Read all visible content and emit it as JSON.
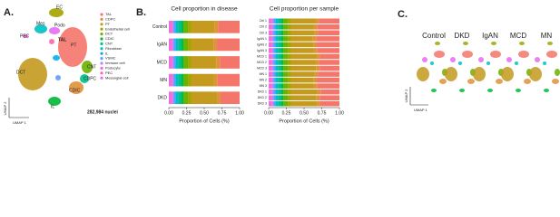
{
  "panel_a": {
    "label": "A.",
    "clusters": [
      "EC",
      "Mes",
      "Podo",
      "PEC",
      "TAL",
      "PT",
      "DCT",
      "CNT",
      "CDPC",
      "CDIC",
      "IL"
    ],
    "nuclei_count": "282,984 nuclei",
    "x_axis": "UMAP 1",
    "y_axis": "UMAP 2"
  },
  "panel_b": {
    "label": "B."
  },
  "chart_data": [
    {
      "type": "bar",
      "orientation": "horizontal",
      "stacked": true,
      "title": "Cell proportion in disease",
      "x_label": "Proportion of Cells (%)",
      "categories": [
        "Control",
        "IgAN",
        "MCD",
        "MN",
        "DKD"
      ],
      "xlim": [
        0,
        1
      ],
      "xticks": [
        {
          "value": 0,
          "label": "0.00"
        },
        {
          "value": 0.25,
          "label": "0.25"
        },
        {
          "value": 0.5,
          "label": "0.50"
        },
        {
          "value": 0.75,
          "label": "0.75"
        },
        {
          "value": 1,
          "label": "1.00"
        }
      ],
      "series": [
        {
          "name": "TAL",
          "color": "#f4766b",
          "values": [
            0.3,
            0.32,
            0.28,
            0.31,
            0.27
          ]
        },
        {
          "name": "CDPC",
          "color": "#e0923a",
          "values": [
            0.05,
            0.05,
            0.05,
            0.05,
            0.05
          ]
        },
        {
          "name": "PT",
          "color": "#c49a1f",
          "values": [
            0.33,
            0.31,
            0.35,
            0.32,
            0.36
          ]
        },
        {
          "name": "Endothelial cell",
          "color": "#a3a500",
          "values": [
            0.05,
            0.05,
            0.05,
            0.05,
            0.05
          ]
        },
        {
          "name": "DCT",
          "color": "#6bb100",
          "values": [
            0.06,
            0.06,
            0.06,
            0.06,
            0.06
          ]
        },
        {
          "name": "CDIC",
          "color": "#00ba38",
          "values": [
            0.03,
            0.03,
            0.03,
            0.03,
            0.03
          ]
        },
        {
          "name": "CNT",
          "color": "#00c08b",
          "values": [
            0.05,
            0.05,
            0.05,
            0.05,
            0.05
          ]
        },
        {
          "name": "Fibroblast",
          "color": "#00bfc4",
          "values": [
            0.03,
            0.03,
            0.03,
            0.03,
            0.03
          ]
        },
        {
          "name": "IL",
          "color": "#00b0f6",
          "values": [
            0.01,
            0.01,
            0.01,
            0.01,
            0.01
          ]
        },
        {
          "name": "VSMC",
          "color": "#619cff",
          "values": [
            0.02,
            0.02,
            0.02,
            0.02,
            0.02
          ]
        },
        {
          "name": "Immune cell",
          "color": "#b983ff",
          "values": [
            0.02,
            0.02,
            0.02,
            0.02,
            0.02
          ]
        },
        {
          "name": "Podocyte",
          "color": "#f564e3",
          "values": [
            0.01,
            0.01,
            0.01,
            0.01,
            0.01
          ]
        },
        {
          "name": "PEC",
          "color": "#ff64b0",
          "values": [
            0.02,
            0.02,
            0.02,
            0.02,
            0.02
          ]
        },
        {
          "name": "Mesangial cell",
          "color": "#e76bf3",
          "values": [
            0.02,
            0.02,
            0.02,
            0.02,
            0.02
          ]
        }
      ]
    },
    {
      "type": "bar",
      "orientation": "horizontal",
      "stacked": true,
      "title": "Cell proportion per sample",
      "x_label": "Proportion of Cells (%)",
      "categories": [
        "Ctrl 1",
        "Ctrl 2",
        "Ctrl 3",
        "IgAN 1",
        "IgAN 2",
        "IgAN 3",
        "MCD 1",
        "MCD 2",
        "MCD 3",
        "MN 1",
        "MN 2",
        "MN 3",
        "DKD 1",
        "DKD 2",
        "DKD 3"
      ],
      "xlim": [
        0,
        1
      ],
      "xticks": [
        {
          "value": 0,
          "label": "0.00"
        },
        {
          "value": 0.25,
          "label": "0.25"
        },
        {
          "value": 0.5,
          "label": "0.50"
        },
        {
          "value": 0.75,
          "label": "0.75"
        },
        {
          "value": 1,
          "label": "1.00"
        }
      ],
      "series": [
        {
          "name": "TAL",
          "color": "#f4766b",
          "values": [
            0.29,
            0.31,
            0.3,
            0.33,
            0.32,
            0.31,
            0.27,
            0.29,
            0.28,
            0.3,
            0.32,
            0.31,
            0.26,
            0.28,
            0.27
          ]
        },
        {
          "name": "CDPC",
          "color": "#e0923a",
          "values": [
            0.05,
            0.05,
            0.05,
            0.05,
            0.05,
            0.05,
            0.05,
            0.05,
            0.05,
            0.05,
            0.05,
            0.05,
            0.05,
            0.05,
            0.05
          ]
        },
        {
          "name": "PT",
          "color": "#c49a1f",
          "values": [
            0.34,
            0.32,
            0.33,
            0.3,
            0.31,
            0.32,
            0.36,
            0.34,
            0.35,
            0.33,
            0.31,
            0.32,
            0.37,
            0.35,
            0.36
          ]
        },
        {
          "name": "Endothelial cell",
          "color": "#a3a500",
          "values": [
            0.05,
            0.05,
            0.05,
            0.05,
            0.05,
            0.05,
            0.05,
            0.05,
            0.05,
            0.05,
            0.05,
            0.05,
            0.05,
            0.05,
            0.05
          ]
        },
        {
          "name": "DCT",
          "color": "#6bb100",
          "values": [
            0.06,
            0.06,
            0.06,
            0.06,
            0.06,
            0.06,
            0.06,
            0.06,
            0.06,
            0.06,
            0.06,
            0.06,
            0.06,
            0.06,
            0.06
          ]
        },
        {
          "name": "CDIC",
          "color": "#00ba38",
          "values": [
            0.03,
            0.03,
            0.03,
            0.03,
            0.03,
            0.03,
            0.03,
            0.03,
            0.03,
            0.03,
            0.03,
            0.03,
            0.03,
            0.03,
            0.03
          ]
        },
        {
          "name": "CNT",
          "color": "#00c08b",
          "values": [
            0.05,
            0.05,
            0.05,
            0.05,
            0.05,
            0.05,
            0.05,
            0.05,
            0.05,
            0.05,
            0.05,
            0.05,
            0.05,
            0.05,
            0.05
          ]
        },
        {
          "name": "Fibroblast",
          "color": "#00bfc4",
          "values": [
            0.03,
            0.03,
            0.03,
            0.03,
            0.03,
            0.03,
            0.03,
            0.03,
            0.03,
            0.03,
            0.03,
            0.03,
            0.03,
            0.03,
            0.03
          ]
        },
        {
          "name": "IL",
          "color": "#00b0f6",
          "values": [
            0.01,
            0.01,
            0.01,
            0.01,
            0.01,
            0.01,
            0.01,
            0.01,
            0.01,
            0.01,
            0.01,
            0.01,
            0.01,
            0.01,
            0.01
          ]
        },
        {
          "name": "VSMC",
          "color": "#619cff",
          "values": [
            0.02,
            0.02,
            0.02,
            0.02,
            0.02,
            0.02,
            0.02,
            0.02,
            0.02,
            0.02,
            0.02,
            0.02,
            0.02,
            0.02,
            0.02
          ]
        },
        {
          "name": "Immune cell",
          "color": "#b983ff",
          "values": [
            0.02,
            0.02,
            0.02,
            0.02,
            0.02,
            0.02,
            0.02,
            0.02,
            0.02,
            0.02,
            0.02,
            0.02,
            0.02,
            0.02,
            0.02
          ]
        },
        {
          "name": "Podocyte",
          "color": "#f564e3",
          "values": [
            0.01,
            0.01,
            0.01,
            0.01,
            0.01,
            0.01,
            0.01,
            0.01,
            0.01,
            0.01,
            0.01,
            0.01,
            0.01,
            0.01,
            0.01
          ]
        },
        {
          "name": "PEC",
          "color": "#ff64b0",
          "values": [
            0.02,
            0.02,
            0.02,
            0.02,
            0.02,
            0.02,
            0.02,
            0.02,
            0.02,
            0.02,
            0.02,
            0.02,
            0.02,
            0.02,
            0.02
          ]
        },
        {
          "name": "Mesangial cell",
          "color": "#e76bf3",
          "values": [
            0.02,
            0.02,
            0.02,
            0.02,
            0.02,
            0.02,
            0.02,
            0.02,
            0.02,
            0.02,
            0.02,
            0.02,
            0.02,
            0.02,
            0.02
          ]
        }
      ]
    }
  ],
  "panel_c": {
    "label": "C.",
    "conditions": [
      "Control",
      "DKD",
      "IgAN",
      "MCD",
      "MN"
    ],
    "x_axis": "UMAP 1",
    "y_axis": "UMAP 2"
  }
}
